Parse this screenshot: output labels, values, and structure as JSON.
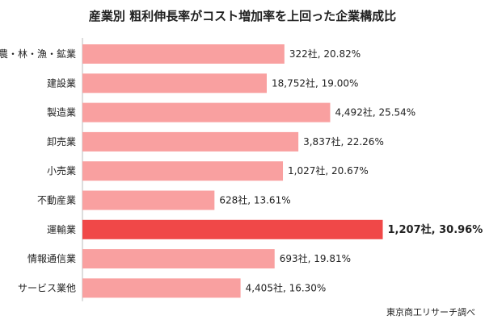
{
  "chart_data": {
    "type": "bar",
    "orientation": "horizontal",
    "title": "産業別 粗利伸長率がコスト増加率を上回った企業構成比",
    "source": "東京商工リサーチ調べ",
    "categories": [
      "農・林・漁・鉱業",
      "建設業",
      "製造業",
      "卸売業",
      "小売業",
      "不動産業",
      "運輸業",
      "情報通信業",
      "サービス業他"
    ],
    "values": [
      20.82,
      19.0,
      25.54,
      22.26,
      20.67,
      13.61,
      30.96,
      19.81,
      16.3
    ],
    "data_labels": [
      "322社, 20.82%",
      "18,752社, 19.00%",
      "4,492社, 25.54%",
      "3,837社, 22.26%",
      "1,027社, 20.67%",
      "628社, 13.61%",
      "1,207社, 30.96%",
      "693社, 19.81%",
      "4,405社, 16.30%"
    ],
    "highlight_index": 6,
    "colors": {
      "bar": "#f9a0a0",
      "highlight": "#f04848"
    },
    "grid": false,
    "legend": "none"
  }
}
